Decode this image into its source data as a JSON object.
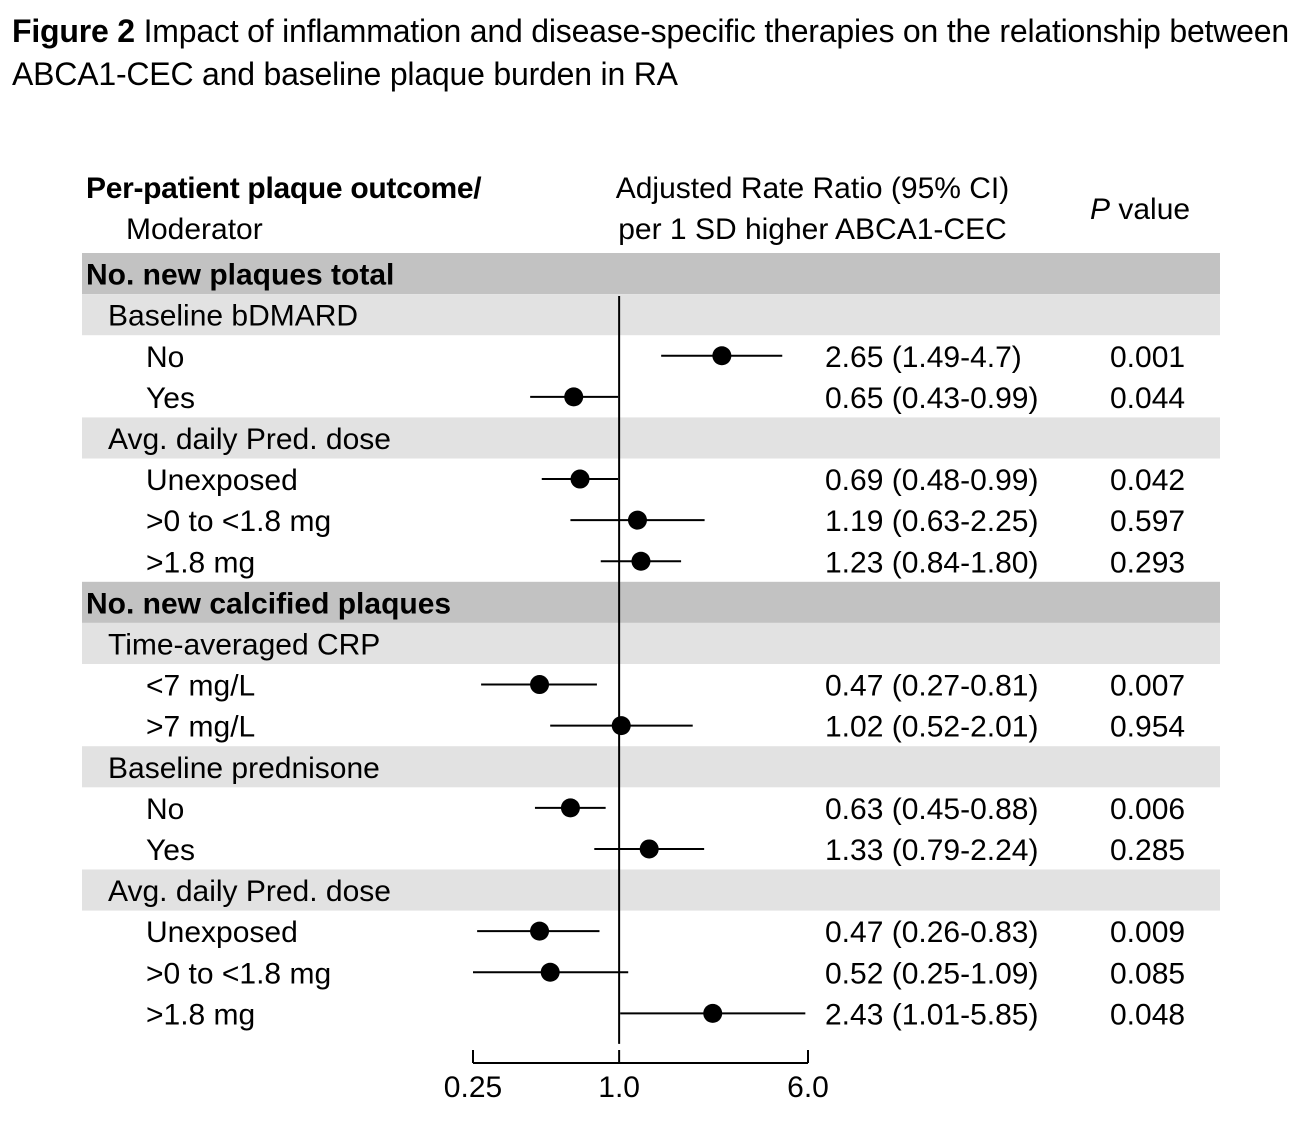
{
  "figure": {
    "label": "Figure 2",
    "title": "Impact of inflammation and disease-specific therapies on the relationship between ABCA1-CEC and baseline plaque burden in RA"
  },
  "headers": {
    "outcome_line1": "Per-patient plaque outcome/",
    "outcome_line2": "Moderator",
    "ratio_line1": "Adjusted Rate Ratio (95% CI)",
    "ratio_line2": "per 1 SD higher ABCA1-CEC",
    "p_italic": "P",
    "p_rest": " value"
  },
  "colors": {
    "section_bg": "#c2c2c2",
    "group_bg": "#e2e2e2",
    "marker": "#000000"
  },
  "chart_data": {
    "type": "forest",
    "x_scale": "log",
    "reference_value": 1.0,
    "xlim": [
      0.25,
      6.0
    ],
    "x_ticks": [
      {
        "value": 0.25,
        "label": "0.25"
      },
      {
        "value": 1.0,
        "label": "1.0"
      },
      {
        "value": 6.0,
        "label": "6.0"
      }
    ],
    "rows": [
      {
        "kind": "section",
        "label": "No. new plaques total"
      },
      {
        "kind": "group",
        "label": "Baseline bDMARD"
      },
      {
        "kind": "item",
        "label": "No",
        "rr": 2.65,
        "lo": 1.49,
        "hi": 4.7,
        "ci_text": "2.65 (1.49-4.7)",
        "p": "0.001"
      },
      {
        "kind": "item",
        "label": "Yes",
        "rr": 0.65,
        "lo": 0.43,
        "hi": 0.99,
        "ci_text": "0.65 (0.43-0.99)",
        "p": "0.044"
      },
      {
        "kind": "group",
        "label": "Avg. daily Pred. dose"
      },
      {
        "kind": "item",
        "label": "Unexposed",
        "rr": 0.69,
        "lo": 0.48,
        "hi": 0.99,
        "ci_text": "0.69 (0.48-0.99)",
        "p": "0.042"
      },
      {
        "kind": "item",
        "label": ">0 to <1.8 mg",
        "rr": 1.19,
        "lo": 0.63,
        "hi": 2.25,
        "ci_text": "1.19 (0.63-2.25)",
        "p": "0.597"
      },
      {
        "kind": "item",
        "label": ">1.8 mg",
        "rr": 1.23,
        "lo": 0.84,
        "hi": 1.8,
        "ci_text": "1.23 (0.84-1.80)",
        "p": "0.293"
      },
      {
        "kind": "section",
        "label": "No. new calcified plaques"
      },
      {
        "kind": "group",
        "label": "Time-averaged CRP"
      },
      {
        "kind": "item",
        "label": "<7 mg/L",
        "rr": 0.47,
        "lo": 0.27,
        "hi": 0.81,
        "ci_text": "0.47 (0.27-0.81)",
        "p": "0.007"
      },
      {
        "kind": "item",
        "label": ">7 mg/L",
        "rr": 1.02,
        "lo": 0.52,
        "hi": 2.01,
        "ci_text": "1.02 (0.52-2.01)",
        "p": "0.954"
      },
      {
        "kind": "group",
        "label": "Baseline prednisone"
      },
      {
        "kind": "item",
        "label": "No",
        "rr": 0.63,
        "lo": 0.45,
        "hi": 0.88,
        "ci_text": "0.63 (0.45-0.88)",
        "p": "0.006"
      },
      {
        "kind": "item",
        "label": "Yes",
        "rr": 1.33,
        "lo": 0.79,
        "hi": 2.24,
        "ci_text": "1.33 (0.79-2.24)",
        "p": "0.285"
      },
      {
        "kind": "group",
        "label": "Avg. daily Pred. dose"
      },
      {
        "kind": "item",
        "label": "Unexposed",
        "rr": 0.47,
        "lo": 0.26,
        "hi": 0.83,
        "ci_text": "0.47 (0.26-0.83)",
        "p": "0.009"
      },
      {
        "kind": "item",
        "label": ">0 to <1.8 mg",
        "rr": 0.52,
        "lo": 0.25,
        "hi": 1.09,
        "ci_text": "0.52 (0.25-1.09)",
        "p": "0.085"
      },
      {
        "kind": "item",
        "label": ">1.8 mg",
        "rr": 2.43,
        "lo": 1.01,
        "hi": 5.85,
        "ci_text": "2.43 (1.01-5.85)",
        "p": "0.048"
      }
    ]
  }
}
